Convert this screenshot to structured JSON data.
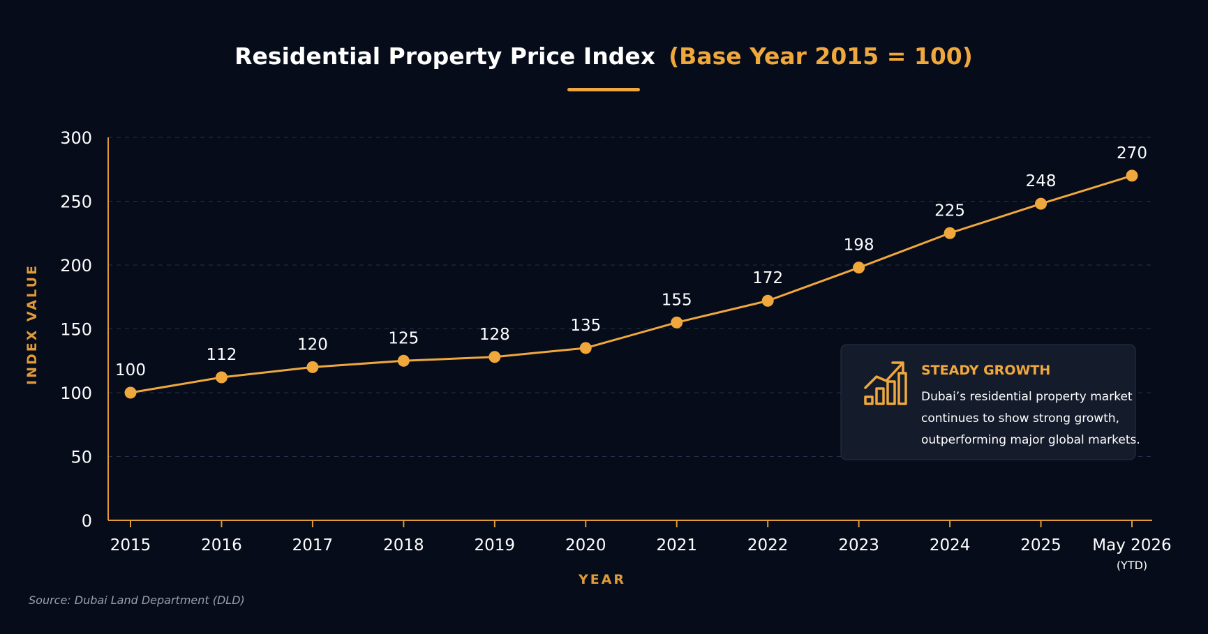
{
  "chart_data": {
    "type": "line",
    "title": "Residential Property Price Index",
    "title_accent": "(Base Year 2015 = 100)",
    "xlabel": "YEAR",
    "ylabel": "INDEX VALUE",
    "categories": [
      "2015",
      "2016",
      "2017",
      "2018",
      "2019",
      "2020",
      "2021",
      "2022",
      "2023",
      "2024",
      "2025",
      "May 2026"
    ],
    "category_notes": [
      "",
      "",
      "",
      "",
      "",
      "",
      "",
      "",
      "",
      "",
      "",
      "(YTD)"
    ],
    "values": [
      100,
      112,
      120,
      125,
      128,
      135,
      155,
      172,
      198,
      225,
      248,
      270
    ],
    "ylim": [
      0,
      300
    ],
    "yticks": [
      0,
      50,
      100,
      150,
      200,
      250,
      300
    ],
    "grid": true,
    "line_color": "#f0a83c",
    "background_color": "#060c1a"
  },
  "callout": {
    "title": "STEADY GROWTH",
    "lines": [
      "Dubai’s residential property market",
      "continues to show strong growth,",
      "outperforming major global markets."
    ],
    "icon": "growth-chart-icon"
  },
  "source": "Source: Dubai Land Department (DLD)"
}
